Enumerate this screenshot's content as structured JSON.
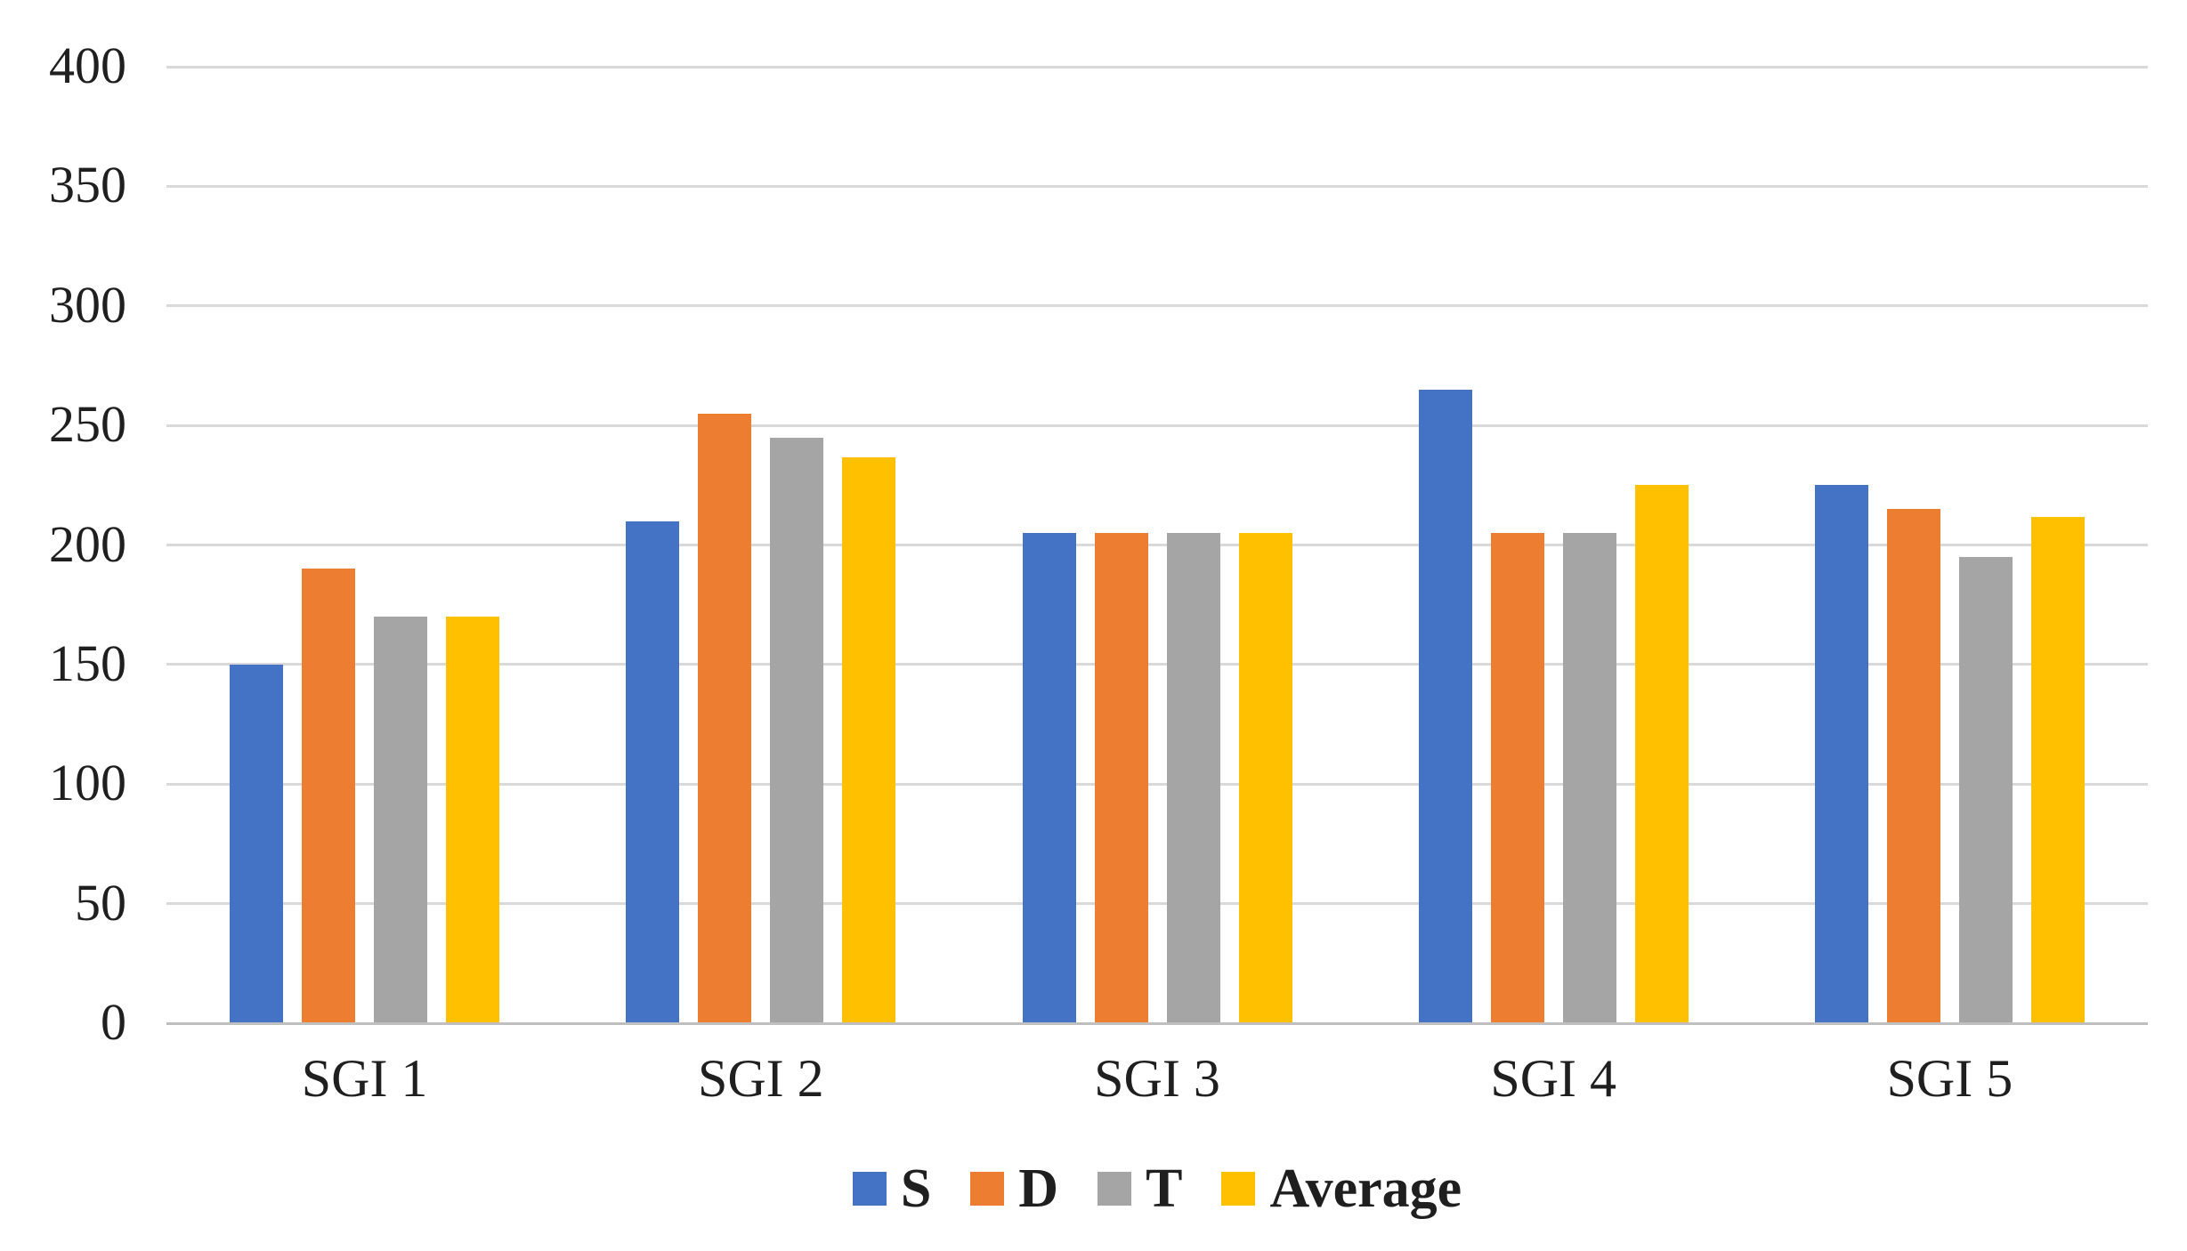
{
  "chart_data": {
    "type": "bar",
    "title": "",
    "xlabel": "",
    "ylabel": "",
    "categories": [
      "SGI 1",
      "SGI 2",
      "SGI 3",
      "SGI 4",
      "SGI 5"
    ],
    "series": [
      {
        "name": "S",
        "color": "#4472C4",
        "values": [
          150,
          210,
          205,
          265,
          225
        ]
      },
      {
        "name": "D",
        "color": "#ED7D31",
        "values": [
          190,
          255,
          205,
          205,
          215
        ]
      },
      {
        "name": "T",
        "color": "#A5A5A5",
        "values": [
          170,
          245,
          205,
          205,
          195
        ]
      },
      {
        "name": "Average",
        "color": "#FFC000",
        "values": [
          170,
          236.67,
          205,
          225,
          211.67
        ]
      }
    ],
    "ylim": [
      0,
      400
    ],
    "yticks": [
      0,
      50,
      100,
      150,
      200,
      250,
      300,
      350,
      400
    ],
    "grid": "horizontal",
    "legend_position": "bottom"
  },
  "colors": {
    "background": "#FFFFFF",
    "gridline": "#D9D9D9",
    "axis_line": "#BFBFBF",
    "text": "#1F1F1F"
  }
}
